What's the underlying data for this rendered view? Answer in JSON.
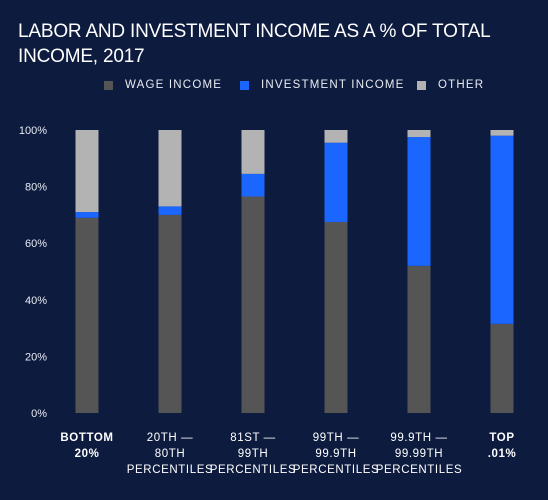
{
  "chart_data": {
    "type": "bar",
    "stacked": true,
    "title": "LABOR AND INVESTMENT INCOME AS A % OF TOTAL INCOME, 2017",
    "xlabel": "",
    "ylabel": "",
    "ylim": [
      0,
      100
    ],
    "y_ticks": [
      "0%",
      "20%",
      "40%",
      "60%",
      "80%",
      "100%"
    ],
    "y_tick_values": [
      0,
      20,
      40,
      60,
      80,
      100
    ],
    "grid": false,
    "legend_position": "top",
    "categories": [
      [
        "BOTTOM",
        "20%"
      ],
      [
        "20TH —",
        "80TH",
        "PERCENTILES"
      ],
      [
        "81ST —",
        "99TH",
        "PERCENTILES"
      ],
      [
        "99TH —",
        "99.9TH",
        "PERCENTILES"
      ],
      [
        "99.9TH —",
        "99.99TH",
        "PERCENTILES"
      ],
      [
        "TOP",
        ".01%"
      ]
    ],
    "bold_categories": [
      0,
      5
    ],
    "series": [
      {
        "name": "WAGE INCOME",
        "color": "#555555",
        "values": [
          69,
          70,
          76.5,
          67.5,
          52,
          31.5
        ]
      },
      {
        "name": "INVESTMENT INCOME",
        "color": "#1a66ff",
        "values": [
          2,
          3,
          8,
          28,
          45.5,
          66.5
        ]
      },
      {
        "name": "OTHER",
        "color": "#b3b3b3",
        "values": [
          29,
          27,
          15.5,
          4.5,
          2.5,
          2
        ]
      }
    ]
  }
}
